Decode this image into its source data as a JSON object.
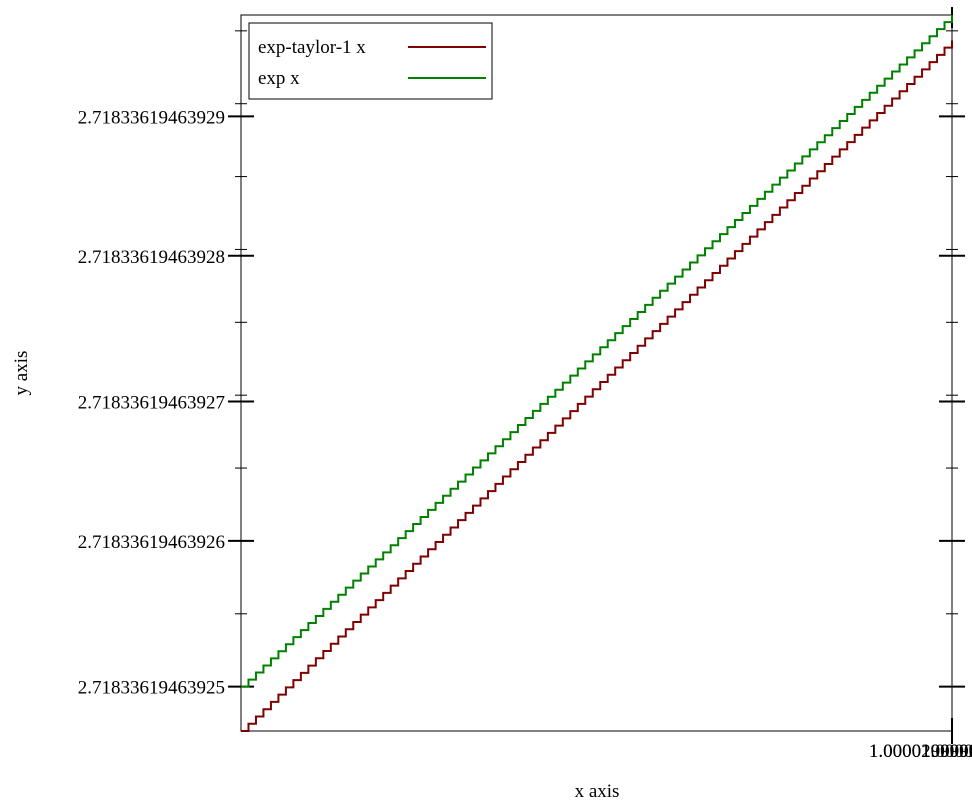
{
  "chart_data": {
    "type": "line",
    "xlabel": "x axis",
    "ylabel": "y axis",
    "xlim": [
      0.99999999999999,
      1.0000200000000108
    ],
    "ylim": [
      2.718336194639247,
      2.718336194639297
    ],
    "x_ticks": [
      {
        "value": 1.0000199999999995,
        "label": "1.0000199999999995"
      },
      {
        "value": 1.00002,
        "label": "1.00002"
      },
      {
        "value": 1.0000200000000006,
        "label": "1.0000200000000005"
      }
    ],
    "y_ticks": [
      {
        "value": 2.71833619463925,
        "label": "2.71833619463925"
      },
      {
        "value": 2.71833619463926,
        "label": "2.71833619463926"
      },
      {
        "value": 2.71833619463927,
        "label": "2.71833619463927"
      },
      {
        "value": 2.71833619463928,
        "label": "2.71833619463928"
      },
      {
        "value": 2.71833619463929,
        "label": "2.71833619463929"
      }
    ],
    "grid": false,
    "legend_position": "top-left",
    "series": [
      {
        "name": "exp-taylor-1 x",
        "color": "#7f0000",
        "x_start": 0.999999999999999,
        "x_end": 1.0000200000000108,
        "y_start": 2.718336194639247,
        "y_end": 2.718336194639295,
        "steps": 95
      },
      {
        "name": "exp x",
        "color": "#008000",
        "x_start": 0.999999999999999,
        "x_end": 1.0000200000000108,
        "y_start": 2.71833619463925,
        "y_end": 2.718336194639297,
        "steps": 95
      }
    ]
  }
}
